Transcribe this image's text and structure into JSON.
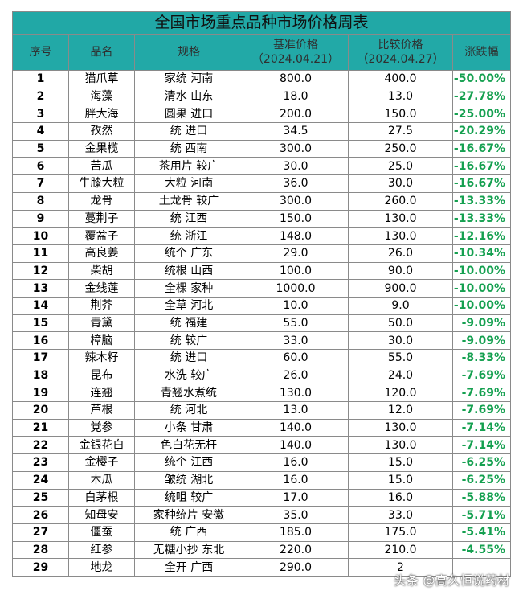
{
  "title": "全国市场重点品种市场价格周表",
  "headers": {
    "index": "序号",
    "name": "品名",
    "spec": "规格",
    "base_price": "基准价格",
    "base_date": "（2024.04.21）",
    "compare_price": "比较价格",
    "compare_date": "（2024.04.27）",
    "change": "涨跌幅"
  },
  "rows": [
    {
      "index": "1",
      "name": "猫爪草",
      "spec": "家统 河南",
      "base": "800.0",
      "compare": "400.0",
      "change": "-50.00%"
    },
    {
      "index": "2",
      "name": "海藻",
      "spec": "清水 山东",
      "base": "18.0",
      "compare": "13.0",
      "change": "-27.78%"
    },
    {
      "index": "3",
      "name": "胖大海",
      "spec": "圆果 进口",
      "base": "200.0",
      "compare": "150.0",
      "change": "-25.00%"
    },
    {
      "index": "4",
      "name": "孜然",
      "spec": "统 进口",
      "base": "34.5",
      "compare": "27.5",
      "change": "-20.29%"
    },
    {
      "index": "5",
      "name": "金果榄",
      "spec": "统 西南",
      "base": "300.0",
      "compare": "250.0",
      "change": "-16.67%"
    },
    {
      "index": "6",
      "name": "苦瓜",
      "spec": "茶用片 较广",
      "base": "30.0",
      "compare": "25.0",
      "change": "-16.67%"
    },
    {
      "index": "7",
      "name": "牛膝大粒",
      "spec": "大粒 河南",
      "base": "36.0",
      "compare": "30.0",
      "change": "-16.67%"
    },
    {
      "index": "8",
      "name": "龙骨",
      "spec": "土龙骨 较广",
      "base": "300.0",
      "compare": "260.0",
      "change": "-13.33%"
    },
    {
      "index": "9",
      "name": "蔓荆子",
      "spec": "统 江西",
      "base": "150.0",
      "compare": "130.0",
      "change": "-13.33%"
    },
    {
      "index": "10",
      "name": "覆盆子",
      "spec": "统 浙江",
      "base": "148.0",
      "compare": "130.0",
      "change": "-12.16%"
    },
    {
      "index": "11",
      "name": "高良姜",
      "spec": "统个 广东",
      "base": "29.0",
      "compare": "26.0",
      "change": "-10.34%"
    },
    {
      "index": "12",
      "name": "柴胡",
      "spec": "统根 山西",
      "base": "100.0",
      "compare": "90.0",
      "change": "-10.00%"
    },
    {
      "index": "13",
      "name": "金线莲",
      "spec": "全棵 家种",
      "base": "1000.0",
      "compare": "900.0",
      "change": "-10.00%"
    },
    {
      "index": "14",
      "name": "荆芥",
      "spec": "全草 河北",
      "base": "10.0",
      "compare": "9.0",
      "change": "-10.00%"
    },
    {
      "index": "15",
      "name": "青黛",
      "spec": "统 福建",
      "base": "55.0",
      "compare": "50.0",
      "change": "-9.09%"
    },
    {
      "index": "16",
      "name": "樟脑",
      "spec": "统 较广",
      "base": "33.0",
      "compare": "30.0",
      "change": "-9.09%"
    },
    {
      "index": "17",
      "name": "辣木籽",
      "spec": "统 进口",
      "base": "60.0",
      "compare": "55.0",
      "change": "-8.33%"
    },
    {
      "index": "18",
      "name": "昆布",
      "spec": "水洗 较广",
      "base": "26.0",
      "compare": "24.0",
      "change": "-7.69%"
    },
    {
      "index": "19",
      "name": "连翘",
      "spec": "青翘水煮统",
      "base": "130.0",
      "compare": "120.0",
      "change": "-7.69%"
    },
    {
      "index": "20",
      "name": "芦根",
      "spec": "统 河北",
      "base": "13.0",
      "compare": "12.0",
      "change": "-7.69%"
    },
    {
      "index": "21",
      "name": "党参",
      "spec": "小条 甘肃",
      "base": "140.0",
      "compare": "130.0",
      "change": "-7.14%"
    },
    {
      "index": "22",
      "name": "金银花白",
      "spec": "色白花无杆",
      "base": "140.0",
      "compare": "130.0",
      "change": "-7.14%"
    },
    {
      "index": "23",
      "name": "金樱子",
      "spec": "统个 江西",
      "base": "16.0",
      "compare": "15.0",
      "change": "-6.25%"
    },
    {
      "index": "24",
      "name": "木瓜",
      "spec": "皱统 湖北",
      "base": "16.0",
      "compare": "15.0",
      "change": "-6.25%"
    },
    {
      "index": "25",
      "name": "白茅根",
      "spec": "统咀 较广",
      "base": "17.0",
      "compare": "16.0",
      "change": "-5.88%"
    },
    {
      "index": "26",
      "name": "知母安",
      "spec": "家种统片 安徽",
      "base": "35.0",
      "compare": "33.0",
      "change": "-5.71%"
    },
    {
      "index": "27",
      "name": "僵蚕",
      "spec": "统 广西",
      "base": "185.0",
      "compare": "175.0",
      "change": "-5.41%"
    },
    {
      "index": "28",
      "name": "红参",
      "spec": "无糖小抄 东北",
      "base": "220.0",
      "compare": "210.0",
      "change": "-4.55%"
    },
    {
      "index": "29",
      "name": "地龙",
      "spec": "全开 广西",
      "base": "290.0",
      "compare": "2",
      "change": ""
    }
  ],
  "watermark": "头条 @高久恒说药材",
  "colors": {
    "header_bg": "#22a9a7",
    "change_text": "#15a050"
  }
}
